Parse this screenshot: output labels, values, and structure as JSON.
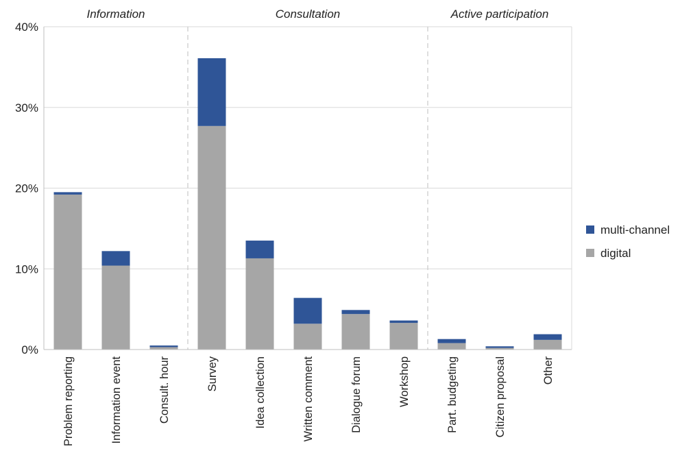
{
  "chart_data": {
    "type": "bar",
    "stacked": true,
    "categories": [
      "Problem reporting",
      "Information event",
      "Consult. hour",
      "Survey",
      "Idea collection",
      "Written comment",
      "Dialogue forum",
      "Workshop",
      "Part. budgeting",
      "Citizen proposal",
      "Other"
    ],
    "series": [
      {
        "name": "digital",
        "color": "#a6a6a6",
        "values": [
          19.2,
          10.4,
          0.3,
          27.7,
          11.3,
          3.2,
          4.4,
          3.3,
          0.8,
          0.2,
          1.2
        ]
      },
      {
        "name": "multi-channel",
        "color": "#2f5597",
        "values": [
          0.3,
          1.8,
          0.2,
          8.4,
          2.2,
          3.2,
          0.5,
          0.3,
          0.5,
          0.2,
          0.7
        ]
      }
    ],
    "ylim": [
      0,
      40
    ],
    "yticks": [
      "0%",
      "10%",
      "20%",
      "30%",
      "40%"
    ],
    "ytick_values": [
      0,
      10,
      20,
      30,
      40
    ],
    "groups": [
      {
        "label": "Information",
        "categories": [
          "Problem reporting",
          "Information event",
          "Consult. hour"
        ]
      },
      {
        "label": "Consultation",
        "categories": [
          "Survey",
          "Idea collection",
          "Written comment",
          "Dialogue forum",
          "Workshop"
        ]
      },
      {
        "label": "Active participation",
        "categories": [
          "Part. budgeting",
          "Citizen proposal",
          "Other"
        ]
      }
    ],
    "legend": {
      "placement": "right",
      "entries": [
        "multi-channel",
        "digital"
      ]
    },
    "grid": true
  }
}
